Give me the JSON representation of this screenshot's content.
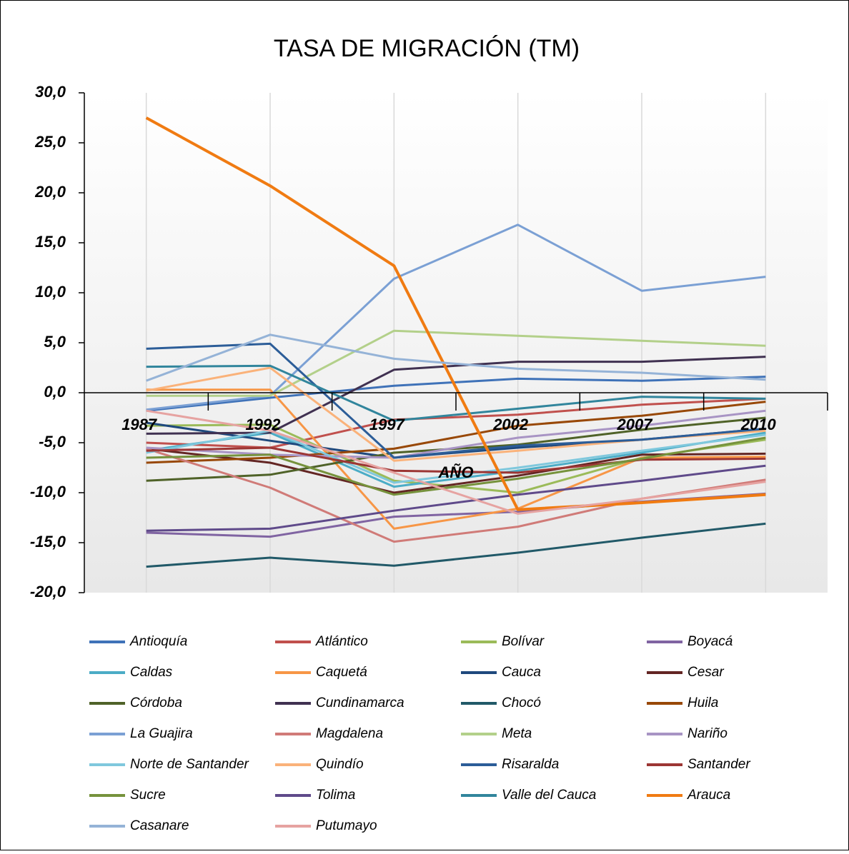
{
  "chart_data": {
    "type": "line",
    "title": "TASA DE MIGRACIÓN (TM)",
    "x_label": "AÑO",
    "categories": [
      "1987",
      "1992",
      "1997",
      "2002",
      "2007",
      "2010"
    ],
    "ylim": [
      -20,
      30
    ],
    "yticks": [
      {
        "value": -20,
        "label": "-20,0"
      },
      {
        "value": -15,
        "label": "-15,0"
      },
      {
        "value": -10,
        "label": "-10,0"
      },
      {
        "value": -5,
        "label": "-5,0"
      },
      {
        "value": 0,
        "label": "0,0"
      },
      {
        "value": 5,
        "label": "5,0"
      },
      {
        "value": 10,
        "label": "10,0"
      },
      {
        "value": 15,
        "label": "15,0"
      },
      {
        "value": 20,
        "label": "20,0"
      },
      {
        "value": 25,
        "label": "25,0"
      },
      {
        "value": 30,
        "label": "30,0"
      }
    ],
    "grid": true,
    "series": [
      {
        "name": "Antioquía",
        "color": "#3f72b8",
        "values": [
          -1.8,
          -0.5,
          0.7,
          1.4,
          1.2,
          1.6
        ]
      },
      {
        "name": "Atlántico",
        "color": "#c0504d",
        "values": [
          -5.0,
          -5.5,
          -2.7,
          -2.2,
          -1.2,
          -0.6
        ]
      },
      {
        "name": "Bolívar",
        "color": "#9bbb59",
        "values": [
          -3.3,
          -3.2,
          -8.8,
          -10.0,
          -6.5,
          -4.7
        ]
      },
      {
        "name": "Boyacá",
        "color": "#8064a2",
        "values": [
          -14.0,
          -14.4,
          -12.4,
          -11.9,
          -10.9,
          -10.1
        ]
      },
      {
        "name": "Caldas",
        "color": "#4bacc6",
        "values": [
          -5.8,
          -4.0,
          -9.4,
          -7.8,
          -6.0,
          -4.0
        ]
      },
      {
        "name": "Caquetá",
        "color": "#f79646",
        "values": [
          0.3,
          0.3,
          -13.6,
          -11.6,
          -6.5,
          -6.4
        ]
      },
      {
        "name": "Cauca",
        "color": "#1f497d",
        "values": [
          -3.0,
          -4.8,
          -6.5,
          -5.5,
          -4.7,
          -3.6
        ]
      },
      {
        "name": "Cesar",
        "color": "#632523",
        "values": [
          -5.6,
          -7.0,
          -10.0,
          -8.3,
          -6.2,
          -6.1
        ]
      },
      {
        "name": "Córdoba",
        "color": "#4f6228",
        "values": [
          -8.8,
          -8.2,
          -6.0,
          -5.2,
          -3.7,
          -2.5
        ]
      },
      {
        "name": "Cundinamarca",
        "color": "#403151",
        "values": [
          -4.1,
          -4.0,
          2.3,
          3.1,
          3.1,
          3.6
        ]
      },
      {
        "name": "Chocó",
        "color": "#215968",
        "values": [
          -17.4,
          -16.5,
          -17.3,
          -16.0,
          -14.5,
          -13.1
        ]
      },
      {
        "name": "Huila",
        "color": "#984807",
        "values": [
          -7.0,
          -6.5,
          -5.6,
          -3.3,
          -2.3,
          -0.9
        ]
      },
      {
        "name": "La Guajira",
        "color": "#7ba0d4",
        "values": [
          -1.7,
          -0.3,
          11.4,
          16.8,
          10.2,
          11.6
        ]
      },
      {
        "name": "Magdalena",
        "color": "#d07b78",
        "values": [
          -5.6,
          -9.5,
          -14.9,
          -13.4,
          -10.6,
          -8.7
        ]
      },
      {
        "name": "Meta",
        "color": "#b3d08a",
        "values": [
          -0.3,
          -0.3,
          6.2,
          5.7,
          5.2,
          4.7
        ]
      },
      {
        "name": "Nariño",
        "color": "#a894c4",
        "values": [
          -5.5,
          -6.2,
          -6.5,
          -4.5,
          -3.3,
          -1.8
        ]
      },
      {
        "name": "Norte de Santander",
        "color": "#7fc8dd",
        "values": [
          -6.0,
          -3.8,
          -9.0,
          -7.5,
          -5.8,
          -4.2
        ]
      },
      {
        "name": "Quindío",
        "color": "#fab27a",
        "values": [
          0.2,
          2.5,
          -6.8,
          -5.8,
          -4.7,
          -3.8
        ]
      },
      {
        "name": "Risaralda",
        "color": "#2c5d98",
        "values": [
          4.4,
          4.9,
          -6.5,
          -5.3,
          -4.7,
          -3.6
        ]
      },
      {
        "name": "Santander",
        "color": "#9c3634",
        "values": [
          -5.8,
          -5.5,
          -7.8,
          -8.0,
          -6.7,
          -6.6
        ]
      },
      {
        "name": "Sucre",
        "color": "#76923c",
        "values": [
          -6.5,
          -6.2,
          -10.2,
          -8.6,
          -6.6,
          -4.5
        ]
      },
      {
        "name": "Tolima",
        "color": "#5f4a8a",
        "values": [
          -13.8,
          -13.6,
          -11.8,
          -10.2,
          -8.8,
          -7.3
        ]
      },
      {
        "name": "Valle del Cauca",
        "color": "#31859c",
        "values": [
          2.6,
          2.7,
          -2.8,
          -1.6,
          -0.4,
          -0.6
        ]
      },
      {
        "name": "Arauca",
        "color": "#f07b12",
        "values": [
          27.5,
          20.7,
          12.7,
          -11.7,
          -11.0,
          -10.2
        ]
      },
      {
        "name": "Casanare",
        "color": "#95b3d7",
        "values": [
          1.2,
          5.8,
          3.4,
          2.4,
          2.0,
          1.3
        ]
      },
      {
        "name": "Putumayo",
        "color": "#e6a3a1",
        "values": [
          -1.8,
          -3.8,
          -8.0,
          -12.1,
          -10.6,
          -8.9
        ]
      }
    ]
  }
}
